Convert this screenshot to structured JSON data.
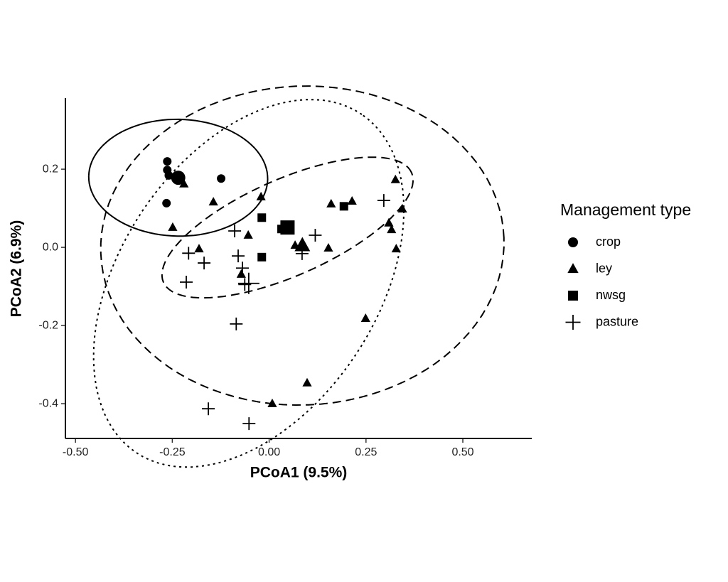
{
  "chart_data": {
    "type": "scatter",
    "x_label": "PCoA1 (9.5%)",
    "y_label": "PCoA2 (6.9%)",
    "legend_title": "Management type",
    "legend": "right",
    "xlim": [
      -0.526,
      0.678
    ],
    "ylim": [
      -0.489,
      0.382
    ],
    "xticks": [
      {
        "value": -0.5,
        "label": "-0.50"
      },
      {
        "value": -0.25,
        "label": "-0.25"
      },
      {
        "value": 0,
        "label": "0.00"
      },
      {
        "value": 0.25,
        "label": "0.25"
      },
      {
        "value": 0.5,
        "label": "0.50"
      }
    ],
    "yticks": [
      -0.4,
      -0.2,
      {
        "value": 0,
        "label": "0.0"
      },
      0.2
    ],
    "series": [
      {
        "name": "crop",
        "color": "#000000",
        "marker": "circle",
        "linetype": "solid",
        "x": [
          -0.263,
          -0.263,
          -0.259,
          -0.124,
          -0.265
        ],
        "values": [
          0.22,
          0.198,
          0.184,
          0.176,
          0.113
        ]
      },
      {
        "name": "ley",
        "color": "#000000",
        "marker": "triangle",
        "linetype": "dashed",
        "x": [
          -0.22,
          -0.144,
          -0.249,
          -0.181,
          -0.021,
          -0.054,
          -0.072,
          0.067,
          0.083,
          0.153,
          0.16,
          0.214,
          0.326,
          0.344,
          0.309,
          0.316,
          0.328,
          0.249,
          0.098,
          0.008
        ],
        "values": [
          0.162,
          0.116,
          0.051,
          -0.004,
          0.129,
          0.031,
          -0.069,
          0.005,
          0,
          -0.002,
          0.111,
          0.118,
          0.173,
          0.098,
          0.062,
          0.045,
          -0.004,
          -0.182,
          -0.347,
          -0.4
        ]
      },
      {
        "name": "nwsg",
        "color": "#000000",
        "marker": "square",
        "linetype": "dashed",
        "x": [
          -0.019,
          -0.019,
          0.032,
          0.05,
          0.193
        ],
        "values": [
          0.076,
          -0.025,
          0.047,
          0.051,
          0.105
        ]
      },
      {
        "name": "pasture",
        "color": "#000000",
        "marker": "plus",
        "linetype": "dotted",
        "x": [
          -0.089,
          -0.208,
          -0.168,
          -0.214,
          -0.08,
          -0.069,
          -0.063,
          -0.085,
          -0.157,
          -0.052,
          0.119,
          0.085,
          0.296
        ],
        "values": [
          0.042,
          -0.015,
          -0.04,
          -0.089,
          -0.022,
          -0.053,
          -0.095,
          -0.196,
          -0.413,
          -0.451,
          0.031,
          -0.016,
          0.12
        ]
      }
    ]
  }
}
